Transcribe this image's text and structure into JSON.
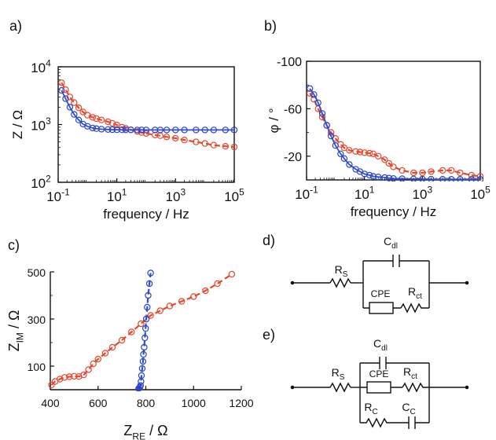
{
  "panels": {
    "a": "a)",
    "b": "b)",
    "c": "c)",
    "d": "d)",
    "e": "e)"
  },
  "colors": {
    "series_1": "#e8472b",
    "series_2": "#2a45c8",
    "series_1_fit": "#e8472b",
    "series_2_fit": "#2f4fd8",
    "axis": "#111111"
  },
  "chart_data": [
    {
      "id": "a",
      "type": "scatter",
      "scale": {
        "x": "log",
        "y": "log"
      },
      "xlabel": "frequency / Hz",
      "ylabel": "Z / Ω",
      "xlim": [
        0.1,
        100000
      ],
      "ylim": [
        100,
        10000
      ],
      "xticks": [
        {
          "value": 0.1,
          "base": "10",
          "exp": "-1"
        },
        {
          "value": 10,
          "base": "10",
          "exp": "1"
        },
        {
          "value": 1000,
          "base": "10",
          "exp": "3"
        },
        {
          "value": 100000,
          "base": "10",
          "exp": "5"
        }
      ],
      "yticks": [
        {
          "value": 100,
          "base": "10",
          "exp": "2"
        },
        {
          "value": 1000,
          "base": "10",
          "exp": "3"
        },
        {
          "value": 10000,
          "base": "10",
          "exp": "4"
        }
      ],
      "series": [
        {
          "color_key": "series_1",
          "marker": "circle",
          "fit": "dash",
          "x": [
            0.13,
            0.18,
            0.25,
            0.35,
            0.5,
            0.7,
            1,
            1.5,
            2,
            3,
            5,
            7,
            10,
            15,
            20,
            30,
            50,
            70,
            100,
            200,
            300,
            500,
            1000,
            2000,
            5000,
            10000,
            20000,
            50000,
            100000
          ],
          "y": [
            5300,
            4000,
            3000,
            2400,
            1950,
            1650,
            1450,
            1330,
            1270,
            1200,
            1120,
            1050,
            980,
            900,
            860,
            810,
            760,
            730,
            700,
            660,
            640,
            610,
            580,
            540,
            500,
            470,
            440,
            420,
            410
          ]
        },
        {
          "color_key": "series_2",
          "marker": "circle",
          "fit": "solid",
          "x": [
            0.13,
            0.18,
            0.25,
            0.35,
            0.5,
            0.7,
            1,
            1.5,
            2,
            3,
            5,
            7,
            10,
            15,
            20,
            30,
            50,
            70,
            100,
            200,
            300,
            500,
            1000,
            2000,
            5000,
            10000,
            20000,
            50000,
            100000
          ],
          "y": [
            3900,
            2800,
            2000,
            1500,
            1200,
            1020,
            930,
            870,
            850,
            830,
            820,
            815,
            812,
            810,
            808,
            807,
            806,
            806,
            805,
            805,
            805,
            805,
            805,
            805,
            805,
            805,
            805,
            805,
            805
          ]
        }
      ]
    },
    {
      "id": "b",
      "type": "scatter",
      "scale": {
        "x": "log",
        "y": "linear"
      },
      "xlabel": "frequency / Hz",
      "ylabel": "φ / °",
      "xlim": [
        0.1,
        100000
      ],
      "ylim": [
        0,
        -100
      ],
      "xticks": [
        {
          "value": 0.1,
          "base": "10",
          "exp": "-1"
        },
        {
          "value": 10,
          "base": "10",
          "exp": "1"
        },
        {
          "value": 1000,
          "base": "10",
          "exp": "3"
        },
        {
          "value": 100000,
          "base": "10",
          "exp": "5"
        }
      ],
      "yticks": [
        {
          "value": -100,
          "label": "-100"
        },
        {
          "value": -60,
          "label": "-60"
        },
        {
          "value": -20,
          "label": "-20"
        }
      ],
      "series": [
        {
          "color_key": "series_1",
          "marker": "circle",
          "fit": "dash",
          "x": [
            0.13,
            0.18,
            0.25,
            0.35,
            0.5,
            0.7,
            1,
            1.5,
            2,
            3,
            5,
            7,
            10,
            15,
            20,
            30,
            50,
            70,
            100,
            200,
            500,
            1000,
            2000,
            5000,
            10000,
            20000,
            50000,
            100000
          ],
          "y": [
            -73,
            -68,
            -60,
            -53,
            -46,
            -40,
            -35,
            -30,
            -27,
            -25,
            -24,
            -23.5,
            -23,
            -22.5,
            -22,
            -20,
            -17,
            -14,
            -11,
            -8,
            -6,
            -6,
            -7,
            -8,
            -8,
            -6,
            -4,
            -3
          ]
        },
        {
          "color_key": "series_2",
          "marker": "circle",
          "fit": "solid",
          "x": [
            0.13,
            0.18,
            0.25,
            0.35,
            0.5,
            0.7,
            1,
            1.5,
            2,
            3,
            5,
            7,
            10,
            15,
            20,
            30,
            50,
            70,
            100,
            200,
            500,
            1000,
            2000,
            5000,
            10000,
            20000,
            50000,
            100000
          ],
          "y": [
            -77,
            -72,
            -65,
            -56,
            -46,
            -37,
            -29,
            -22,
            -18,
            -13,
            -9,
            -7,
            -5,
            -4,
            -3,
            -2.5,
            -2,
            -1.5,
            -1.2,
            -1,
            -0.8,
            -0.7,
            -0.6,
            -0.5,
            -0.5,
            -0.5,
            -0.5,
            -0.5
          ]
        }
      ]
    },
    {
      "id": "c",
      "type": "scatter",
      "scale": {
        "x": "linear",
        "y": "linear"
      },
      "xlabel": {
        "main": "Z",
        "sub": "RE",
        "unit": " / Ω"
      },
      "ylabel": {
        "main": "Z",
        "sub": "IM",
        "unit": " / Ω"
      },
      "xlim": [
        400,
        1200
      ],
      "ylim": [
        0,
        500
      ],
      "xticks": [
        {
          "value": 400,
          "label": "400"
        },
        {
          "value": 600,
          "label": "600"
        },
        {
          "value": 800,
          "label": "800"
        },
        {
          "value": 1000,
          "label": "1000"
        },
        {
          "value": 1200,
          "label": "1200"
        }
      ],
      "yticks": [
        {
          "value": 100,
          "label": "100"
        },
        {
          "value": 300,
          "label": "300"
        },
        {
          "value": 500,
          "label": "500"
        }
      ],
      "series": [
        {
          "color_key": "series_1",
          "marker": "circle",
          "fit": "dash",
          "x": [
            405,
            420,
            440,
            460,
            480,
            500,
            520,
            540,
            560,
            580,
            600,
            630,
            660,
            700,
            740,
            780,
            820,
            860,
            900,
            950,
            1000,
            1050,
            1100,
            1160
          ],
          "y": [
            20,
            35,
            45,
            52,
            55,
            57,
            56,
            63,
            85,
            110,
            130,
            155,
            180,
            210,
            245,
            280,
            315,
            335,
            355,
            375,
            395,
            420,
            450,
            490
          ]
        },
        {
          "color_key": "series_2",
          "marker": "circle",
          "fit": "dash",
          "x": [
            770,
            775,
            778,
            780,
            782,
            785,
            788,
            790,
            793,
            796,
            799,
            802,
            806,
            810,
            815,
            820
          ],
          "y": [
            5,
            10,
            18,
            35,
            60,
            90,
            120,
            150,
            180,
            220,
            260,
            300,
            350,
            400,
            450,
            495
          ]
        }
      ]
    }
  ],
  "circuit_d": {
    "rs": {
      "main": "R",
      "sub": "S"
    },
    "cdl": {
      "main": "C",
      "sub": "dl"
    },
    "cpe": "CPE",
    "rct": {
      "main": "R",
      "sub": "ct"
    }
  },
  "circuit_e": {
    "rs": {
      "main": "R",
      "sub": "S"
    },
    "cdl": {
      "main": "C",
      "sub": "dl"
    },
    "cpe": "CPE",
    "rct": {
      "main": "R",
      "sub": "ct"
    },
    "rc": {
      "main": "R",
      "sub": "C"
    },
    "cc": {
      "main": "C",
      "sub": "C"
    }
  }
}
